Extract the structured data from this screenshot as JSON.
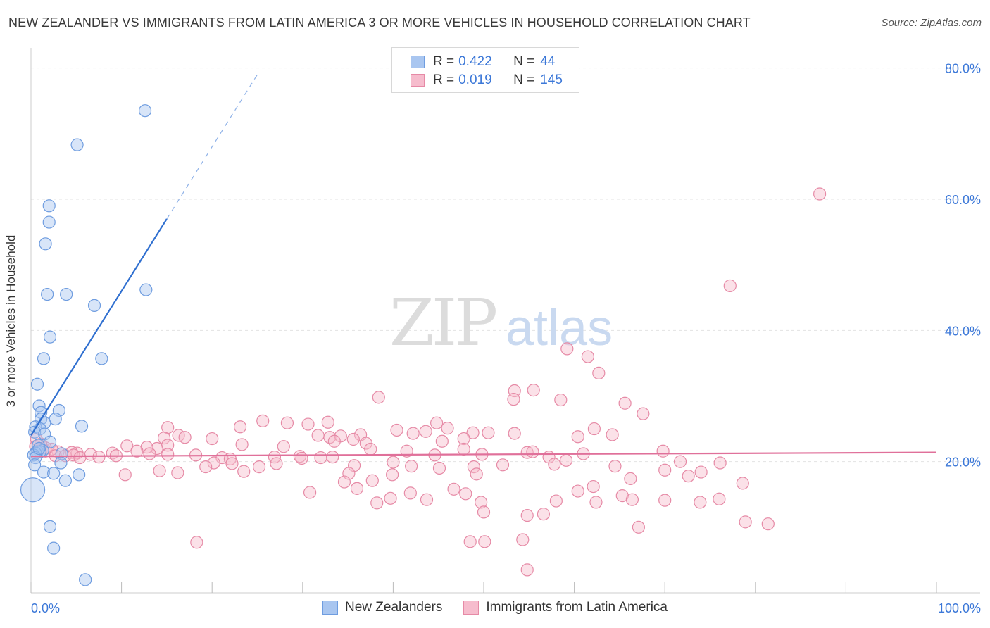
{
  "header": {
    "title": "NEW ZEALANDER VS IMMIGRANTS FROM LATIN AMERICA 3 OR MORE VEHICLES IN HOUSEHOLD CORRELATION CHART",
    "source": "Source: ZipAtlas.com"
  },
  "watermark": {
    "zip": "ZIP",
    "atlas": "atlas"
  },
  "legend": {
    "rows": [
      {
        "r_label": "R =",
        "r_value": "0.422",
        "n_label": "N =",
        "n_value": "44",
        "color": "#a9c6f0",
        "border": "#6f9de0"
      },
      {
        "r_label": "R =",
        "r_value": "0.019",
        "n_label": "N =",
        "n_value": "145",
        "color": "#f6bccd",
        "border": "#e68aa6"
      }
    ]
  },
  "bottom_legend": {
    "items": [
      {
        "label": "New Zealanders",
        "color": "#a9c6f0",
        "border": "#6f9de0"
      },
      {
        "label": "Immigrants from Latin America",
        "color": "#f6bccd",
        "border": "#e68aa6"
      }
    ]
  },
  "chart_data": {
    "type": "scatter",
    "title": "NEW ZEALANDER VS IMMIGRANTS FROM LATIN AMERICA 3 OR MORE VEHICLES IN HOUSEHOLD CORRELATION CHART",
    "xlabel": "",
    "ylabel": "3 or more Vehicles in Household",
    "xlim": [
      0,
      100
    ],
    "ylim": [
      0,
      82
    ],
    "x_tick_labels": [
      "0.0%",
      "100.0%"
    ],
    "y_ticks": [
      20,
      40,
      60,
      80
    ],
    "y_tick_labels": [
      "20.0%",
      "40.0%",
      "60.0%",
      "80.0%"
    ],
    "grid": true,
    "series": [
      {
        "name": "New Zealanders",
        "color": "#6f9de0",
        "fill": "#a9c6f0",
        "trend": {
          "x0": 0,
          "y0": 24.0,
          "x1": 15,
          "y1": 57.0,
          "x_dash_end": 25,
          "y_dash_end": 79.0,
          "color": "#2f6fd0"
        },
        "points": [
          [
            12.6,
            73.5
          ],
          [
            5.1,
            68.3
          ],
          [
            2.0,
            59.0
          ],
          [
            2.0,
            56.5
          ],
          [
            1.6,
            53.2
          ],
          [
            12.7,
            46.2
          ],
          [
            1.8,
            45.5
          ],
          [
            3.9,
            45.5
          ],
          [
            7.0,
            43.8
          ],
          [
            2.1,
            39.0
          ],
          [
            1.4,
            35.7
          ],
          [
            7.8,
            35.7
          ],
          [
            0.7,
            31.8
          ],
          [
            0.9,
            28.5
          ],
          [
            3.1,
            27.8
          ],
          [
            1.1,
            27.5
          ],
          [
            1.1,
            26.5
          ],
          [
            2.7,
            26.5
          ],
          [
            1.5,
            25.9
          ],
          [
            5.6,
            25.4
          ],
          [
            0.5,
            25.3
          ],
          [
            1.0,
            25.0
          ],
          [
            0.4,
            24.5
          ],
          [
            1.5,
            24.2
          ],
          [
            2.1,
            23.0
          ],
          [
            0.8,
            22.5
          ],
          [
            1.3,
            21.7
          ],
          [
            0.7,
            21.5
          ],
          [
            1.0,
            21.5
          ],
          [
            0.5,
            21.3
          ],
          [
            0.3,
            21.0
          ],
          [
            0.5,
            20.6
          ],
          [
            3.4,
            21.2
          ],
          [
            3.3,
            19.8
          ],
          [
            0.4,
            19.5
          ],
          [
            1.4,
            18.4
          ],
          [
            2.5,
            18.2
          ],
          [
            5.3,
            18.0
          ],
          [
            3.8,
            17.1
          ],
          [
            0.2,
            15.7
          ],
          [
            2.1,
            10.1
          ],
          [
            2.5,
            6.8
          ],
          [
            6.0,
            2.0
          ],
          [
            0.9,
            22.0
          ]
        ]
      },
      {
        "name": "Immigrants from Latin America",
        "color": "#e68aa6",
        "fill": "#f6bccd",
        "trend": {
          "x0": 0,
          "y0": 20.8,
          "x1": 100,
          "y1": 21.4,
          "color": "#e0709a"
        },
        "points": [
          [
            87.1,
            60.8
          ],
          [
            77.2,
            46.8
          ],
          [
            59.2,
            37.2
          ],
          [
            61.5,
            36.0
          ],
          [
            62.7,
            33.5
          ],
          [
            38.4,
            29.8
          ],
          [
            53.4,
            30.8
          ],
          [
            55.5,
            30.9
          ],
          [
            53.3,
            29.5
          ],
          [
            58.5,
            29.4
          ],
          [
            65.6,
            28.9
          ],
          [
            67.6,
            27.3
          ],
          [
            25.6,
            26.2
          ],
          [
            28.3,
            25.9
          ],
          [
            30.6,
            25.7
          ],
          [
            32.8,
            26.0
          ],
          [
            44.8,
            25.9
          ],
          [
            15.1,
            25.2
          ],
          [
            23.1,
            25.3
          ],
          [
            40.4,
            24.8
          ],
          [
            46.0,
            25.1
          ],
          [
            62.2,
            25.0
          ],
          [
            48.8,
            24.4
          ],
          [
            50.5,
            24.4
          ],
          [
            53.4,
            24.3
          ],
          [
            64.2,
            24.1
          ],
          [
            60.4,
            23.8
          ],
          [
            31.7,
            24.0
          ],
          [
            33.0,
            23.7
          ],
          [
            36.4,
            24.1
          ],
          [
            34.2,
            23.9
          ],
          [
            35.6,
            23.4
          ],
          [
            33.5,
            23.1
          ],
          [
            16.3,
            24.0
          ],
          [
            14.7,
            23.6
          ],
          [
            17.0,
            23.7
          ],
          [
            20.0,
            23.5
          ],
          [
            42.2,
            24.3
          ],
          [
            43.6,
            24.6
          ],
          [
            45.4,
            23.1
          ],
          [
            47.8,
            23.5
          ],
          [
            37.0,
            22.8
          ],
          [
            27.9,
            22.3
          ],
          [
            23.3,
            22.6
          ],
          [
            15.1,
            22.5
          ],
          [
            13.9,
            22.0
          ],
          [
            12.8,
            22.2
          ],
          [
            10.6,
            22.4
          ],
          [
            11.7,
            21.6
          ],
          [
            9.0,
            21.3
          ],
          [
            6.6,
            21.1
          ],
          [
            5.1,
            21.3
          ],
          [
            4.5,
            21.4
          ],
          [
            3.0,
            21.5
          ],
          [
            2.3,
            21.9
          ],
          [
            1.6,
            22.1
          ],
          [
            1.1,
            22.7
          ],
          [
            0.6,
            23.4
          ],
          [
            0.5,
            22.3
          ],
          [
            1.6,
            21.6
          ],
          [
            2.7,
            20.9
          ],
          [
            3.8,
            20.9
          ],
          [
            4.7,
            21.0
          ],
          [
            5.4,
            20.6
          ],
          [
            7.5,
            20.7
          ],
          [
            9.4,
            20.9
          ],
          [
            13.1,
            21.2
          ],
          [
            15.1,
            21.1
          ],
          [
            18.2,
            21.0
          ],
          [
            21.1,
            20.6
          ],
          [
            22.0,
            20.4
          ],
          [
            26.9,
            20.7
          ],
          [
            29.7,
            20.8
          ],
          [
            32.0,
            20.6
          ],
          [
            29.9,
            20.5
          ],
          [
            33.3,
            20.7
          ],
          [
            37.5,
            21.9
          ],
          [
            41.5,
            21.6
          ],
          [
            44.6,
            21.0
          ],
          [
            47.8,
            21.9
          ],
          [
            49.8,
            21.1
          ],
          [
            54.8,
            21.4
          ],
          [
            57.2,
            20.7
          ],
          [
            59.1,
            20.2
          ],
          [
            61.0,
            21.2
          ],
          [
            69.8,
            21.6
          ],
          [
            76.1,
            19.8
          ],
          [
            71.7,
            20.0
          ],
          [
            20.2,
            19.8
          ],
          [
            22.2,
            19.7
          ],
          [
            25.2,
            19.2
          ],
          [
            35.7,
            19.4
          ],
          [
            40.0,
            19.9
          ],
          [
            42.0,
            19.3
          ],
          [
            45.1,
            19.0
          ],
          [
            48.9,
            19.2
          ],
          [
            52.1,
            19.5
          ],
          [
            57.8,
            19.6
          ],
          [
            64.5,
            19.3
          ],
          [
            70.0,
            18.7
          ],
          [
            74.0,
            18.4
          ],
          [
            72.6,
            17.8
          ],
          [
            49.2,
            18.1
          ],
          [
            39.9,
            18.0
          ],
          [
            35.1,
            18.2
          ],
          [
            23.5,
            18.5
          ],
          [
            16.2,
            18.3
          ],
          [
            14.2,
            18.6
          ],
          [
            10.4,
            18.0
          ],
          [
            37.7,
            17.1
          ],
          [
            34.6,
            16.9
          ],
          [
            30.8,
            15.3
          ],
          [
            36.0,
            15.9
          ],
          [
            46.7,
            15.8
          ],
          [
            48.0,
            15.1
          ],
          [
            41.9,
            15.2
          ],
          [
            38.2,
            13.7
          ],
          [
            39.7,
            14.4
          ],
          [
            43.7,
            14.2
          ],
          [
            65.3,
            14.8
          ],
          [
            70.0,
            14.1
          ],
          [
            76.0,
            14.3
          ],
          [
            78.6,
            16.7
          ],
          [
            66.4,
            14.2
          ],
          [
            62.4,
            13.8
          ],
          [
            58.0,
            14.0
          ],
          [
            49.7,
            13.8
          ],
          [
            50.0,
            12.3
          ],
          [
            56.6,
            12.0
          ],
          [
            54.8,
            11.8
          ],
          [
            67.1,
            10.0
          ],
          [
            50.1,
            7.8
          ],
          [
            48.5,
            7.8
          ],
          [
            54.3,
            8.1
          ],
          [
            18.3,
            7.7
          ],
          [
            54.8,
            3.5
          ],
          [
            60.4,
            15.5
          ],
          [
            62.1,
            16.2
          ],
          [
            66.2,
            17.4
          ],
          [
            78.9,
            10.8
          ],
          [
            73.9,
            13.8
          ],
          [
            81.4,
            10.5
          ],
          [
            19.3,
            19.2
          ],
          [
            27.1,
            19.7
          ],
          [
            55.4,
            21.5
          ]
        ]
      }
    ]
  }
}
